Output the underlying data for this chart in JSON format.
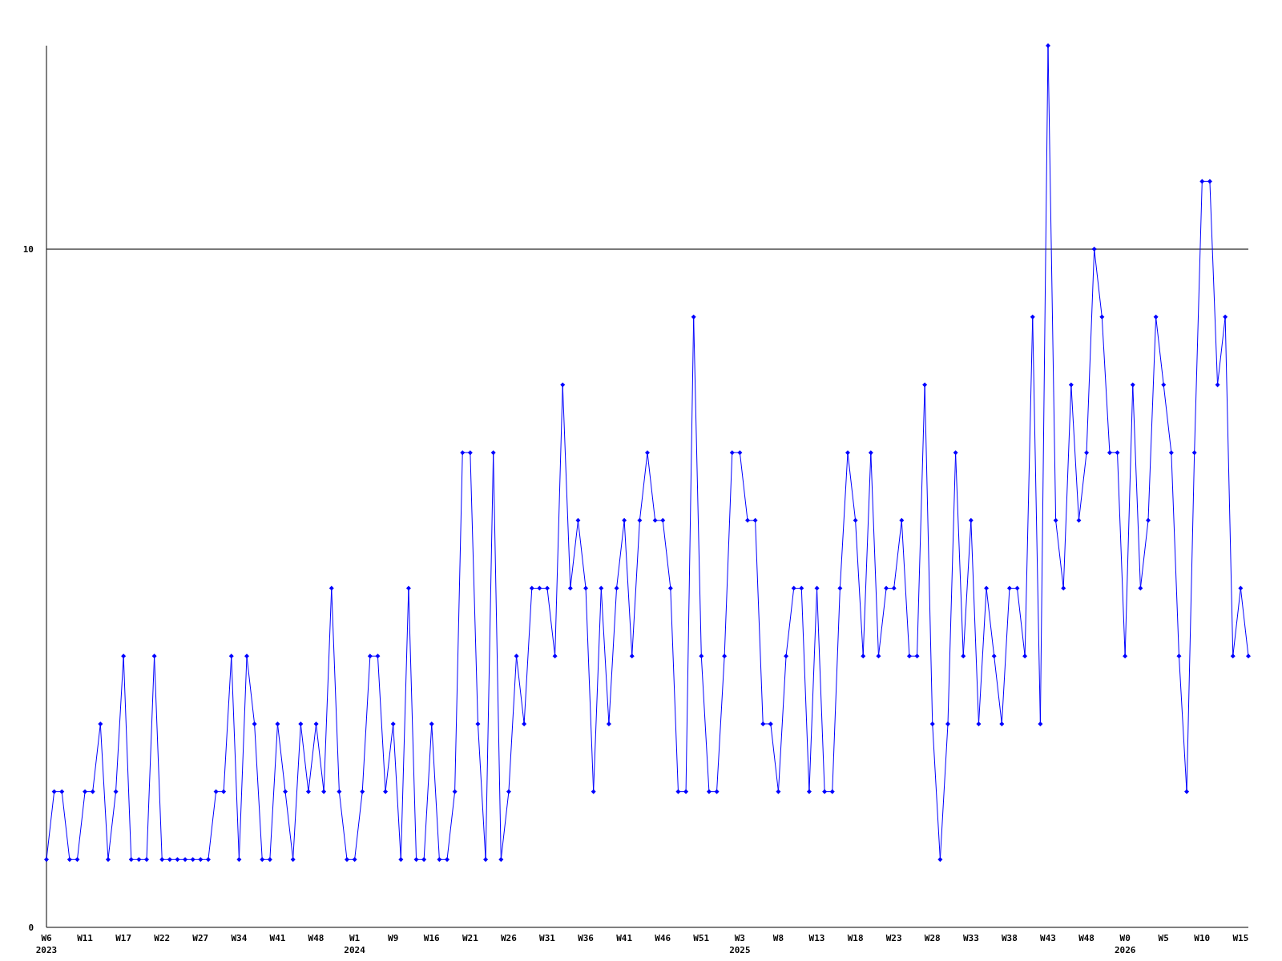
{
  "chart_data": {
    "type": "line",
    "categories": [
      "W6\n2023",
      null,
      null,
      null,
      null,
      "W11",
      null,
      null,
      null,
      null,
      "W17",
      null,
      null,
      null,
      null,
      "W22",
      null,
      null,
      null,
      null,
      "W27",
      null,
      null,
      null,
      null,
      "W34",
      null,
      null,
      null,
      null,
      "W41",
      null,
      null,
      null,
      null,
      "W48",
      null,
      null,
      null,
      null,
      "W1\n2024",
      null,
      null,
      null,
      null,
      "W9",
      null,
      null,
      null,
      null,
      "W16",
      null,
      null,
      null,
      null,
      "W21",
      null,
      null,
      null,
      null,
      "W26",
      null,
      null,
      null,
      null,
      "W31",
      null,
      null,
      null,
      null,
      "W36",
      null,
      null,
      null,
      null,
      "W41",
      null,
      null,
      null,
      null,
      "W46",
      null,
      null,
      null,
      null,
      "W51",
      null,
      null,
      null,
      null,
      "W3\n2025",
      null,
      null,
      null,
      null,
      "W8",
      null,
      null,
      null,
      null,
      "W13",
      null,
      null,
      null,
      null,
      "W18",
      null,
      null,
      null,
      null,
      "W23",
      null,
      null,
      null,
      null,
      "W28",
      null,
      null,
      null,
      null,
      "W33",
      null,
      null,
      null,
      null,
      "W38",
      null,
      null,
      null,
      null,
      "W43",
      null,
      null,
      null,
      null,
      "W48",
      null,
      null,
      null,
      null,
      "W0\n2026",
      null,
      null,
      null,
      null,
      "W5",
      null,
      null,
      null,
      null,
      "W10",
      null,
      null,
      null,
      null,
      "W15",
      null
    ],
    "series": [
      {
        "color": "#0000ff",
        "values": [
          1,
          2,
          2,
          1,
          1,
          2,
          2,
          3,
          1,
          2,
          4,
          1,
          1,
          1,
          4,
          1,
          1,
          1,
          1,
          1,
          1,
          1,
          2,
          2,
          4,
          1,
          4,
          3,
          1,
          1,
          3,
          2,
          1,
          3,
          2,
          3,
          2,
          5,
          2,
          1,
          1,
          2,
          4,
          4,
          2,
          3,
          1,
          5,
          1,
          1,
          3,
          1,
          1,
          2,
          7,
          7,
          3,
          1,
          7,
          1,
          2,
          4,
          3,
          5,
          5,
          5,
          4,
          8,
          5,
          6,
          5,
          2,
          5,
          3,
          5,
          6,
          4,
          6,
          7,
          6,
          6,
          5,
          2,
          2,
          9,
          4,
          2,
          2,
          4,
          7,
          7,
          6,
          6,
          3,
          3,
          2,
          4,
          5,
          5,
          2,
          5,
          2,
          2,
          5,
          7,
          6,
          4,
          7,
          4,
          5,
          5,
          6,
          4,
          4,
          8,
          3,
          1,
          3,
          7,
          4,
          6,
          3,
          5,
          4,
          3,
          5,
          5,
          4,
          9,
          3,
          13,
          6,
          5,
          8,
          6,
          7,
          10,
          9,
          7,
          7,
          4,
          8,
          5,
          6,
          9,
          8,
          7,
          4,
          2,
          7,
          11,
          11,
          8,
          9,
          4,
          5,
          4
        ]
      }
    ],
    "ylim": [
      0,
      13
    ],
    "yticks": [
      0,
      10
    ],
    "grid": "y",
    "marker": "diamond",
    "line_style": "solid"
  }
}
